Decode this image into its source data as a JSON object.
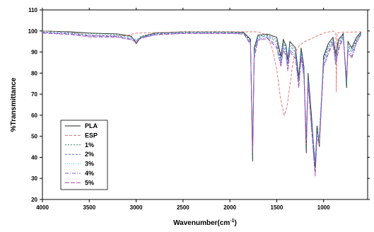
{
  "chart_data": {
    "type": "line",
    "xlabel": "Wavenumber(cm",
    "xlabel_sup": "-1",
    "xlabel_end": ")",
    "ylabel": "%Transmittance",
    "xlim": [
      4000,
      600
    ],
    "ylim": [
      20,
      110
    ],
    "x_ticks": [
      4000,
      3500,
      3000,
      2500,
      2000,
      1500,
      1000,
      500
    ],
    "y_ticks": [
      20,
      30,
      40,
      50,
      60,
      70,
      80,
      90,
      100,
      110
    ],
    "legend_position": "bottom-left",
    "series": [
      {
        "name": "PLA",
        "color": "#222222",
        "dash": "",
        "points": [
          [
            4000,
            100
          ],
          [
            3700,
            99.6
          ],
          [
            3500,
            99
          ],
          [
            3200,
            98.6
          ],
          [
            3050,
            97.5
          ],
          [
            3000,
            94
          ],
          [
            2950,
            97
          ],
          [
            2800,
            99
          ],
          [
            2500,
            99.6
          ],
          [
            2000,
            99.6
          ],
          [
            1850,
            99.3
          ],
          [
            1780,
            96
          ],
          [
            1757,
            38
          ],
          [
            1740,
            92
          ],
          [
            1700,
            98
          ],
          [
            1600,
            98.5
          ],
          [
            1500,
            97
          ],
          [
            1455,
            88
          ],
          [
            1430,
            96
          ],
          [
            1400,
            93
          ],
          [
            1382,
            86
          ],
          [
            1360,
            95
          ],
          [
            1300,
            92
          ],
          [
            1265,
            78
          ],
          [
            1240,
            92
          ],
          [
            1210,
            83
          ],
          [
            1185,
            42
          ],
          [
            1165,
            80
          ],
          [
            1130,
            60
          ],
          [
            1090,
            35
          ],
          [
            1070,
            55
          ],
          [
            1045,
            45
          ],
          [
            1000,
            88
          ],
          [
            950,
            94
          ],
          [
            900,
            97
          ],
          [
            870,
            89
          ],
          [
            840,
            96
          ],
          [
            800,
            98
          ],
          [
            790,
            99
          ],
          [
            755,
            73
          ],
          [
            740,
            95
          ],
          [
            700,
            92
          ],
          [
            650,
            97
          ],
          [
            600,
            99.5
          ]
        ]
      },
      {
        "name": "ESP",
        "color": "#e07070",
        "dash": "4,2",
        "points": [
          [
            4000,
            100
          ],
          [
            3700,
            99.4
          ],
          [
            3500,
            98
          ],
          [
            3300,
            97.5
          ],
          [
            3100,
            97.8
          ],
          [
            3000,
            99
          ],
          [
            2500,
            99.6
          ],
          [
            2000,
            99.6
          ],
          [
            1800,
            99.6
          ],
          [
            1700,
            99.6
          ],
          [
            1600,
            98
          ],
          [
            1550,
            92
          ],
          [
            1500,
            82
          ],
          [
            1460,
            68
          ],
          [
            1420,
            60
          ],
          [
            1390,
            64
          ],
          [
            1360,
            74
          ],
          [
            1330,
            84
          ],
          [
            1300,
            90
          ],
          [
            1260,
            93
          ],
          [
            1200,
            95
          ],
          [
            1100,
            97
          ],
          [
            1000,
            99
          ],
          [
            900,
            100
          ],
          [
            870,
            99
          ],
          [
            864,
            71
          ],
          [
            855,
            99
          ],
          [
            800,
            99.5
          ],
          [
            740,
            99.5
          ],
          [
            700,
            99.5
          ],
          [
            600,
            99.6
          ]
        ]
      },
      {
        "name": "1%",
        "color": "#2e8b57",
        "dash": "2,2",
        "points": [
          [
            4000,
            100
          ],
          [
            3700,
            99.5
          ],
          [
            3500,
            98.8
          ],
          [
            3200,
            98.4
          ],
          [
            3050,
            97.2
          ],
          [
            3000,
            95
          ],
          [
            2950,
            97.5
          ],
          [
            2800,
            99
          ],
          [
            2500,
            99.5
          ],
          [
            2000,
            99.5
          ],
          [
            1850,
            99.2
          ],
          [
            1780,
            95.5
          ],
          [
            1757,
            40
          ],
          [
            1740,
            91
          ],
          [
            1700,
            97.5
          ],
          [
            1600,
            98
          ],
          [
            1500,
            96
          ],
          [
            1455,
            87
          ],
          [
            1430,
            95
          ],
          [
            1400,
            92
          ],
          [
            1382,
            85
          ],
          [
            1360,
            94
          ],
          [
            1300,
            91
          ],
          [
            1265,
            77
          ],
          [
            1240,
            91
          ],
          [
            1210,
            82
          ],
          [
            1185,
            44
          ],
          [
            1165,
            79
          ],
          [
            1130,
            58
          ],
          [
            1090,
            33
          ],
          [
            1070,
            53
          ],
          [
            1045,
            47
          ],
          [
            1000,
            87
          ],
          [
            950,
            93
          ],
          [
            900,
            96
          ],
          [
            870,
            88
          ],
          [
            840,
            95
          ],
          [
            800,
            97.5
          ],
          [
            790,
            98.5
          ],
          [
            755,
            74
          ],
          [
            740,
            94
          ],
          [
            700,
            91
          ],
          [
            650,
            96
          ],
          [
            600,
            99.2
          ]
        ]
      },
      {
        "name": "2%",
        "color": "#4b6fd6",
        "dash": "3,2",
        "points": [
          [
            4000,
            99.5
          ],
          [
            3700,
            99
          ],
          [
            3500,
            98
          ],
          [
            3200,
            97.8
          ],
          [
            3050,
            96.6
          ],
          [
            3000,
            95.5
          ],
          [
            2950,
            97
          ],
          [
            2800,
            98.6
          ],
          [
            2500,
            99.2
          ],
          [
            2000,
            99.2
          ],
          [
            1850,
            99
          ],
          [
            1780,
            95
          ],
          [
            1757,
            44
          ],
          [
            1740,
            90
          ],
          [
            1700,
            97
          ],
          [
            1600,
            97.6
          ],
          [
            1500,
            95
          ],
          [
            1455,
            86
          ],
          [
            1430,
            94
          ],
          [
            1400,
            91
          ],
          [
            1382,
            84
          ],
          [
            1360,
            93
          ],
          [
            1300,
            90
          ],
          [
            1265,
            76
          ],
          [
            1240,
            90
          ],
          [
            1210,
            81
          ],
          [
            1185,
            48
          ],
          [
            1165,
            78
          ],
          [
            1130,
            57
          ],
          [
            1090,
            37
          ],
          [
            1070,
            52
          ],
          [
            1045,
            50
          ],
          [
            1000,
            86
          ],
          [
            950,
            92
          ],
          [
            900,
            95.5
          ],
          [
            870,
            87
          ],
          [
            840,
            94
          ],
          [
            800,
            97
          ],
          [
            790,
            98
          ],
          [
            755,
            75
          ],
          [
            740,
            93
          ],
          [
            700,
            90
          ],
          [
            650,
            95.5
          ],
          [
            600,
            99
          ]
        ]
      },
      {
        "name": "3%",
        "color": "#40c8e8",
        "dash": "1,2",
        "points": [
          [
            4000,
            99.3
          ],
          [
            3700,
            98.7
          ],
          [
            3500,
            97.4
          ],
          [
            3200,
            97.2
          ],
          [
            3050,
            96.2
          ],
          [
            3000,
            96
          ],
          [
            2950,
            96.8
          ],
          [
            2800,
            98.4
          ],
          [
            2500,
            99
          ],
          [
            2000,
            99
          ],
          [
            1850,
            98.8
          ],
          [
            1780,
            94.5
          ],
          [
            1757,
            48
          ],
          [
            1740,
            89
          ],
          [
            1700,
            96.5
          ],
          [
            1600,
            97.2
          ],
          [
            1500,
            94
          ],
          [
            1455,
            85
          ],
          [
            1430,
            93
          ],
          [
            1400,
            90
          ],
          [
            1382,
            83
          ],
          [
            1360,
            92
          ],
          [
            1300,
            89
          ],
          [
            1265,
            75
          ],
          [
            1240,
            89
          ],
          [
            1210,
            80
          ],
          [
            1185,
            52
          ],
          [
            1165,
            77
          ],
          [
            1130,
            56
          ],
          [
            1090,
            40
          ],
          [
            1070,
            51
          ],
          [
            1045,
            53
          ],
          [
            1000,
            85
          ],
          [
            950,
            91
          ],
          [
            900,
            95
          ],
          [
            870,
            86
          ],
          [
            840,
            93
          ],
          [
            800,
            96.5
          ],
          [
            790,
            97.5
          ],
          [
            755,
            76
          ],
          [
            740,
            92
          ],
          [
            700,
            89
          ],
          [
            650,
            95
          ],
          [
            600,
            98.8
          ]
        ]
      },
      {
        "name": "4%",
        "color": "#7a5ad0",
        "dash": "5,2,1,2",
        "points": [
          [
            4000,
            99.2
          ],
          [
            3700,
            98.5
          ],
          [
            3500,
            97.6
          ],
          [
            3200,
            97.4
          ],
          [
            3050,
            96
          ],
          [
            3000,
            94.5
          ],
          [
            2950,
            96.6
          ],
          [
            2800,
            98.3
          ],
          [
            2500,
            98.9
          ],
          [
            2000,
            98.9
          ],
          [
            1850,
            98.6
          ],
          [
            1780,
            94
          ],
          [
            1757,
            46
          ],
          [
            1740,
            88
          ],
          [
            1700,
            96
          ],
          [
            1600,
            96.8
          ],
          [
            1500,
            93
          ],
          [
            1455,
            84
          ],
          [
            1430,
            92
          ],
          [
            1400,
            89
          ],
          [
            1382,
            82
          ],
          [
            1360,
            91
          ],
          [
            1300,
            88
          ],
          [
            1265,
            74
          ],
          [
            1240,
            88
          ],
          [
            1210,
            79
          ],
          [
            1185,
            50
          ],
          [
            1165,
            76
          ],
          [
            1130,
            55
          ],
          [
            1090,
            32
          ],
          [
            1070,
            50
          ],
          [
            1045,
            49
          ],
          [
            1000,
            84
          ],
          [
            950,
            90
          ],
          [
            900,
            94.5
          ],
          [
            870,
            85
          ],
          [
            840,
            92
          ],
          [
            800,
            96
          ],
          [
            790,
            97
          ],
          [
            755,
            77
          ],
          [
            740,
            91
          ],
          [
            700,
            88
          ],
          [
            650,
            94.5
          ],
          [
            600,
            98.6
          ]
        ]
      },
      {
        "name": "5%",
        "color": "#b04fb0",
        "dash": "6,2",
        "points": [
          [
            4000,
            99
          ],
          [
            3700,
            98.3
          ],
          [
            3500,
            97.2
          ],
          [
            3200,
            97
          ],
          [
            3050,
            95.8
          ],
          [
            3000,
            95
          ],
          [
            2950,
            96.4
          ],
          [
            2800,
            98.1
          ],
          [
            2500,
            98.8
          ],
          [
            2000,
            98.8
          ],
          [
            1850,
            98.5
          ],
          [
            1780,
            93.5
          ],
          [
            1757,
            42
          ],
          [
            1740,
            87
          ],
          [
            1700,
            95.5
          ],
          [
            1600,
            96.4
          ],
          [
            1500,
            92
          ],
          [
            1455,
            83
          ],
          [
            1430,
            91
          ],
          [
            1400,
            88
          ],
          [
            1382,
            81
          ],
          [
            1360,
            90
          ],
          [
            1300,
            87
          ],
          [
            1265,
            73
          ],
          [
            1240,
            87
          ],
          [
            1210,
            78
          ],
          [
            1185,
            46
          ],
          [
            1165,
            75
          ],
          [
            1130,
            54
          ],
          [
            1090,
            31
          ],
          [
            1070,
            49
          ],
          [
            1045,
            46
          ],
          [
            1000,
            83
          ],
          [
            950,
            89
          ],
          [
            900,
            94
          ],
          [
            870,
            84
          ],
          [
            840,
            91
          ],
          [
            800,
            95.5
          ],
          [
            790,
            96.5
          ],
          [
            755,
            78
          ],
          [
            740,
            90
          ],
          [
            700,
            87
          ],
          [
            650,
            94
          ],
          [
            600,
            98.4
          ]
        ]
      }
    ]
  }
}
